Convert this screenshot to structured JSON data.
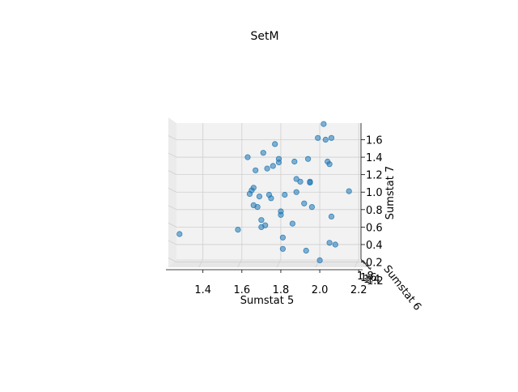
{
  "chart_data": {
    "type": "scatter",
    "projection": "3d",
    "title": "SetM",
    "xlabel": "Sumstat 5",
    "ylabel": "Sumstat 6",
    "zlabel": "Sumstat 7",
    "xlim": [
      1.21,
      2.22
    ],
    "zlim": [
      0.14,
      1.79
    ],
    "x_ticks": [
      "1.4",
      "1.6",
      "1.8",
      "2.0",
      "2.2"
    ],
    "y_ticks": [
      "1.2",
      "1.4",
      "1.6",
      "1.8"
    ],
    "z_ticks": [
      "0.2",
      "0.4",
      "0.6",
      "0.8",
      "1.0",
      "1.2",
      "1.4",
      "1.6"
    ],
    "grid": true,
    "marker_color": "#1f77b4",
    "pane_color": "#f2f2f2",
    "series": [
      {
        "x": [
          1.28,
          1.58,
          1.63,
          1.66,
          1.64,
          1.65,
          1.67,
          1.66,
          1.68,
          1.69,
          1.7,
          1.7,
          1.71,
          1.72,
          1.73,
          1.74,
          1.75,
          1.76,
          1.77,
          1.79,
          1.79,
          1.8,
          1.8,
          1.81,
          1.81,
          1.82,
          1.86,
          1.87,
          1.88,
          1.88,
          1.9,
          1.92,
          1.93,
          1.94,
          1.95,
          1.95,
          1.96,
          1.99,
          2.0,
          2.02,
          2.03,
          2.04,
          2.05,
          2.05,
          2.06,
          2.06,
          2.08,
          2.15
        ],
        "z": [
          0.52,
          0.57,
          1.4,
          1.05,
          0.98,
          1.02,
          1.25,
          0.85,
          0.83,
          0.95,
          0.68,
          0.6,
          1.45,
          0.62,
          1.27,
          0.97,
          0.93,
          1.3,
          1.55,
          1.34,
          1.38,
          0.78,
          0.74,
          0.48,
          0.35,
          0.97,
          0.64,
          1.35,
          1.15,
          1.0,
          1.12,
          0.87,
          0.33,
          1.38,
          1.11,
          1.12,
          0.83,
          1.62,
          0.22,
          1.78,
          1.6,
          1.35,
          1.32,
          0.42,
          0.72,
          1.62,
          0.4,
          1.01
        ]
      }
    ]
  }
}
